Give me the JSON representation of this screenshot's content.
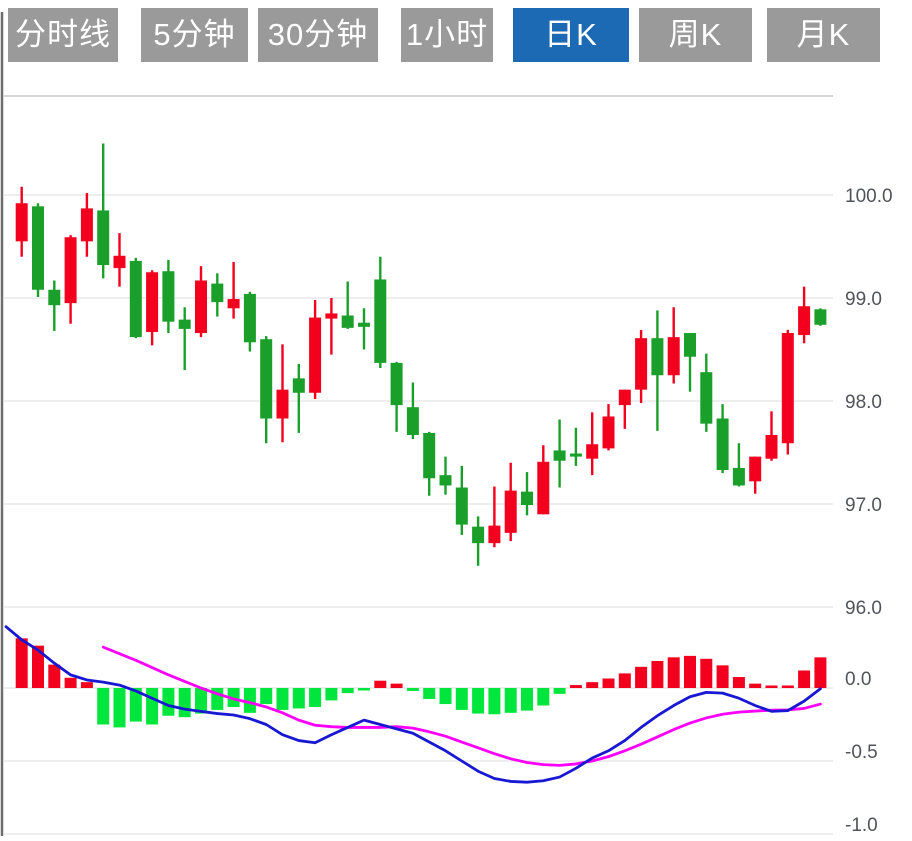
{
  "tabs": {
    "items": [
      {
        "label": "分时线",
        "active": false
      },
      {
        "label": "5分钟",
        "active": false
      },
      {
        "label": "30分钟",
        "active": false
      },
      {
        "label": "1小时",
        "active": false
      },
      {
        "label": "日K",
        "active": true
      },
      {
        "label": "周K",
        "active": false
      },
      {
        "label": "月K",
        "active": false
      }
    ]
  },
  "colors": {
    "tab_bg": "#9a9a9a",
    "tab_active_bg": "#1c69b4",
    "tab_text": "#ffffff",
    "candle_up": "#f2001e",
    "candle_down": "#1aa02a",
    "hist_up": "#f2001e",
    "hist_down": "#00e63c",
    "dif_line": "#1818d2",
    "dea_line": "#fa00fa",
    "grid": "#e4e4e4",
    "panel_border": "#c9c9c9",
    "left_border": "#6e6e6e",
    "axis_text": "#50545a"
  },
  "chart_data": {
    "type": "candlestick",
    "title": "Daily K-line with MACD indicator",
    "legend_position": "none",
    "grid": true,
    "price_axis": {
      "labels": [
        "100.0",
        "99.0",
        "98.0",
        "97.0",
        "96.0"
      ],
      "values": [
        100.0,
        99.0,
        98.0,
        97.0,
        96.0
      ],
      "range_top": 101.0,
      "range_bottom": 95.9
    },
    "indicator_axis": {
      "labels": [
        "0.0",
        "-0.5",
        "-1.0"
      ],
      "values": [
        0.0,
        -0.5,
        -1.0
      ]
    },
    "candles_ohlc": [
      [
        99.55,
        100.08,
        99.4,
        99.92
      ],
      [
        99.89,
        99.92,
        99.01,
        99.08
      ],
      [
        99.08,
        99.17,
        98.68,
        98.93
      ],
      [
        98.95,
        99.61,
        98.75,
        99.59
      ],
      [
        99.55,
        100.02,
        99.4,
        99.87
      ],
      [
        99.85,
        100.5,
        99.19,
        99.32
      ],
      [
        99.29,
        99.63,
        99.11,
        99.41
      ],
      [
        99.36,
        99.39,
        98.61,
        98.62
      ],
      [
        98.67,
        99.27,
        98.54,
        99.25
      ],
      [
        99.26,
        99.37,
        98.66,
        98.77
      ],
      [
        98.79,
        98.91,
        98.3,
        98.7
      ],
      [
        98.66,
        99.31,
        98.62,
        99.17
      ],
      [
        99.14,
        99.24,
        98.82,
        98.96
      ],
      [
        98.9,
        99.35,
        98.8,
        98.99
      ],
      [
        99.04,
        99.06,
        98.48,
        98.57
      ],
      [
        98.6,
        98.63,
        97.59,
        97.83
      ],
      [
        97.83,
        98.55,
        97.6,
        98.11
      ],
      [
        98.22,
        98.36,
        97.69,
        98.08
      ],
      [
        98.08,
        98.98,
        98.02,
        98.81
      ],
      [
        98.8,
        99.0,
        98.45,
        98.85
      ],
      [
        98.83,
        99.16,
        98.7,
        98.71
      ],
      [
        98.76,
        98.9,
        98.5,
        98.72
      ],
      [
        99.18,
        99.4,
        98.32,
        98.37
      ],
      [
        98.37,
        98.38,
        97.7,
        97.96
      ],
      [
        97.94,
        98.18,
        97.63,
        97.67
      ],
      [
        97.69,
        97.7,
        97.08,
        97.25
      ],
      [
        97.28,
        97.46,
        97.09,
        97.18
      ],
      [
        97.16,
        97.37,
        96.7,
        96.8
      ],
      [
        96.78,
        96.88,
        96.4,
        96.62
      ],
      [
        96.62,
        97.17,
        96.58,
        96.79
      ],
      [
        96.72,
        97.4,
        96.64,
        97.13
      ],
      [
        97.12,
        97.31,
        96.89,
        96.99
      ],
      [
        96.9,
        97.57,
        96.9,
        97.41
      ],
      [
        97.52,
        97.82,
        97.16,
        97.42
      ],
      [
        97.49,
        97.74,
        97.37,
        97.46
      ],
      [
        97.44,
        97.89,
        97.28,
        97.58
      ],
      [
        97.54,
        97.97,
        97.52,
        97.85
      ],
      [
        97.96,
        98.11,
        97.73,
        98.11
      ],
      [
        98.11,
        98.69,
        97.98,
        98.61
      ],
      [
        98.61,
        98.88,
        97.71,
        98.25
      ],
      [
        98.25,
        98.91,
        98.17,
        98.62
      ],
      [
        98.66,
        98.66,
        98.09,
        98.43
      ],
      [
        98.28,
        98.46,
        97.7,
        97.78
      ],
      [
        97.83,
        97.97,
        97.3,
        97.33
      ],
      [
        97.35,
        97.59,
        97.17,
        97.18
      ],
      [
        97.22,
        97.46,
        97.1,
        97.46
      ],
      [
        97.44,
        97.9,
        97.42,
        97.67
      ],
      [
        97.59,
        98.69,
        97.48,
        98.66
      ],
      [
        98.64,
        99.11,
        98.56,
        98.92
      ],
      [
        98.89,
        98.9,
        98.73,
        98.74
      ]
    ],
    "macd": {
      "hist": [
        0.34,
        0.29,
        0.16,
        0.07,
        0.04,
        -0.25,
        -0.27,
        -0.23,
        -0.25,
        -0.19,
        -0.2,
        -0.175,
        -0.15,
        -0.13,
        -0.17,
        -0.11,
        -0.15,
        -0.14,
        -0.13,
        -0.085,
        -0.035,
        -0.012,
        0.05,
        0.03,
        -0.02,
        -0.075,
        -0.11,
        -0.15,
        -0.175,
        -0.18,
        -0.17,
        -0.155,
        -0.12,
        -0.04,
        0.02,
        0.04,
        0.065,
        0.1,
        0.145,
        0.185,
        0.21,
        0.22,
        0.2,
        0.155,
        0.075,
        0.03,
        0.015,
        0.012,
        0.12,
        0.21
      ],
      "dif": [
        0.33,
        0.26,
        0.17,
        0.09,
        0.055,
        0.04,
        0.02,
        -0.02,
        -0.07,
        -0.12,
        -0.145,
        -0.16,
        -0.175,
        -0.185,
        -0.21,
        -0.25,
        -0.32,
        -0.36,
        -0.375,
        -0.32,
        -0.27,
        -0.22,
        -0.25,
        -0.28,
        -0.31,
        -0.37,
        -0.43,
        -0.5,
        -0.57,
        -0.62,
        -0.64,
        -0.645,
        -0.635,
        -0.61,
        -0.55,
        -0.48,
        -0.43,
        -0.36,
        -0.27,
        -0.19,
        -0.12,
        -0.06,
        -0.03,
        -0.035,
        -0.07,
        -0.12,
        -0.16,
        -0.155,
        -0.09,
        -0.005
      ],
      "dif_pre": 0.42,
      "dea": [
        null,
        null,
        null,
        null,
        null,
        0.28,
        0.235,
        0.19,
        0.14,
        0.09,
        0.045,
        0.0,
        -0.04,
        -0.075,
        -0.1,
        -0.13,
        -0.17,
        -0.22,
        -0.255,
        -0.265,
        -0.27,
        -0.27,
        -0.27,
        -0.265,
        -0.275,
        -0.3,
        -0.33,
        -0.37,
        -0.41,
        -0.45,
        -0.485,
        -0.51,
        -0.525,
        -0.53,
        -0.52,
        -0.5,
        -0.47,
        -0.43,
        -0.385,
        -0.335,
        -0.285,
        -0.24,
        -0.205,
        -0.18,
        -0.165,
        -0.158,
        -0.152,
        -0.15,
        -0.14,
        -0.11
      ]
    }
  }
}
